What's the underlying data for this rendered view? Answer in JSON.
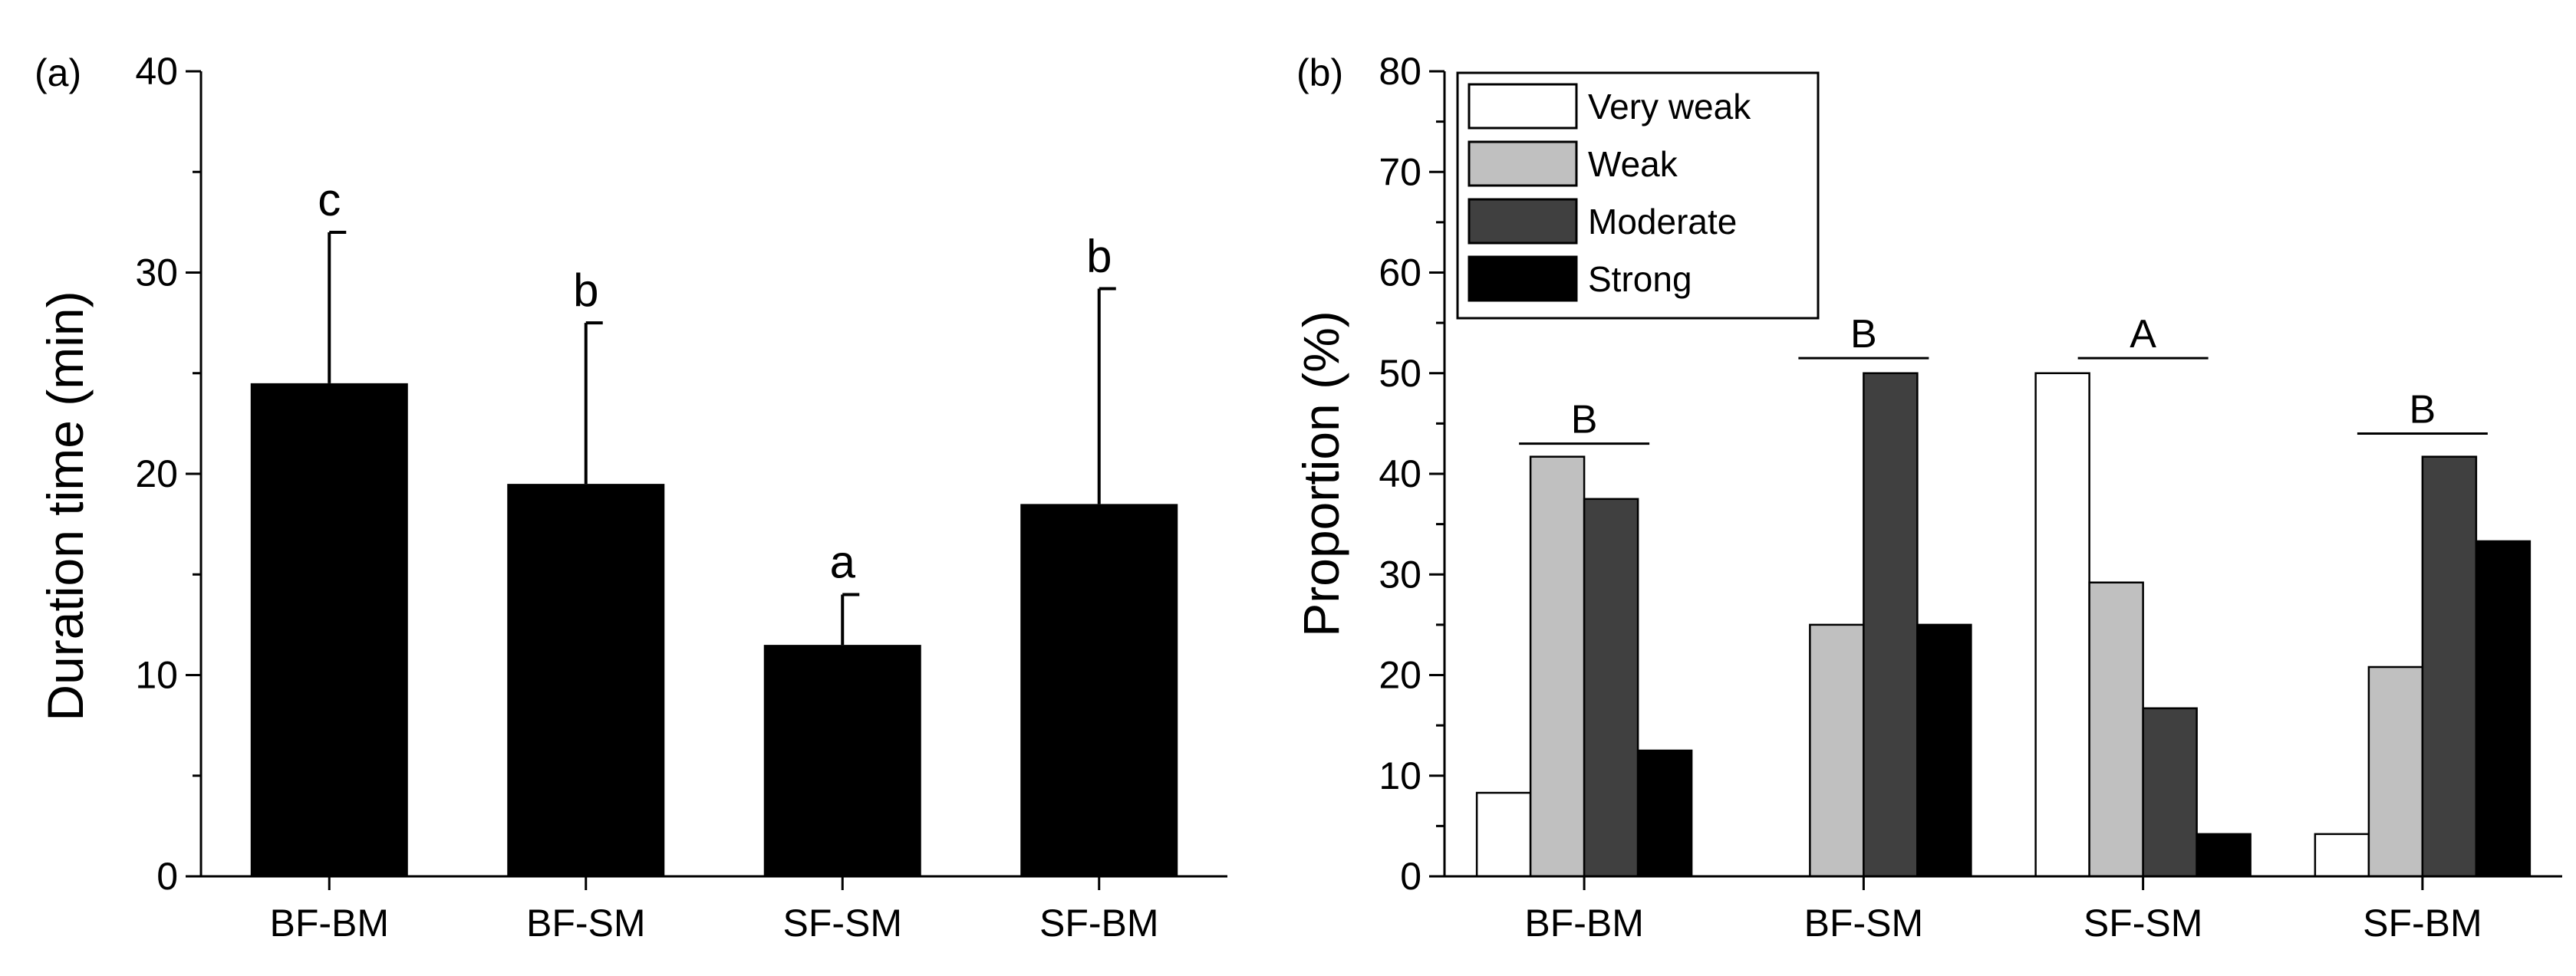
{
  "chart_data": [
    {
      "type": "bar",
      "panel_label": "(a)",
      "categories": [
        "BF-BM",
        "BF-SM",
        "SF-SM",
        "SF-BM"
      ],
      "values": [
        24.5,
        19.5,
        11.5,
        18.5
      ],
      "error_upper": [
        32.0,
        27.5,
        14.0,
        29.2
      ],
      "significance_letters": [
        "c",
        "b",
        "a",
        "b"
      ],
      "bar_color": "#000000",
      "xlabel": "",
      "ylabel": "Duration time (min)",
      "ylim": [
        0,
        40
      ],
      "yticks": [
        0,
        10,
        20,
        30,
        40
      ],
      "grid": false
    },
    {
      "type": "bar",
      "panel_label": "(b)",
      "categories": [
        "BF-BM",
        "BF-SM",
        "SF-SM",
        "SF-BM"
      ],
      "series": [
        {
          "name": "Very weak",
          "color": "#ffffff",
          "values": [
            8.3,
            0,
            50,
            4.2
          ]
        },
        {
          "name": "Weak",
          "color": "#c0c0c0",
          "values": [
            41.7,
            25,
            29.2,
            20.8
          ]
        },
        {
          "name": "Moderate",
          "color": "#404040",
          "values": [
            37.5,
            50,
            16.7,
            41.7
          ]
        },
        {
          "name": "Strong",
          "color": "#000000",
          "values": [
            12.5,
            25,
            4.2,
            33.3
          ]
        }
      ],
      "group_letters": [
        "B",
        "B",
        "A",
        "B"
      ],
      "group_letter_levels": [
        43,
        51.5,
        51.5,
        44
      ],
      "xlabel": "",
      "ylabel": "Proportion (%)",
      "ylim": [
        0,
        80
      ],
      "yticks": [
        0,
        10,
        20,
        30,
        40,
        50,
        60,
        70,
        80
      ],
      "legend_position": "top-left",
      "grid": false
    }
  ]
}
